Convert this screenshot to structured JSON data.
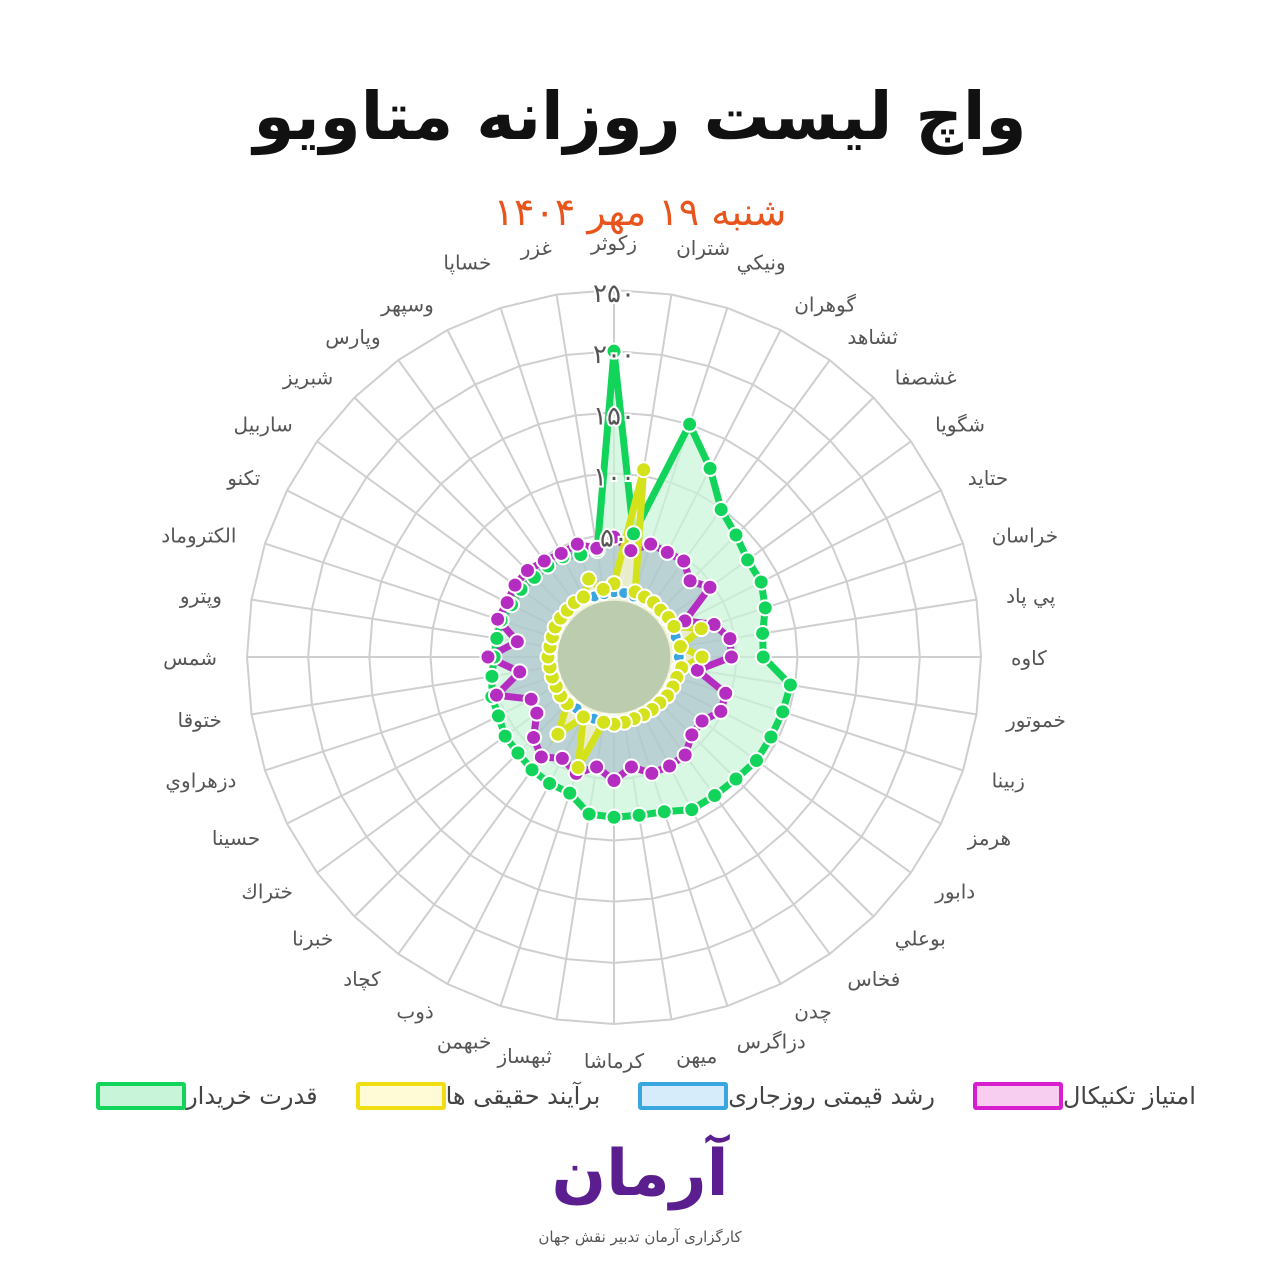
{
  "header": {
    "title": "واچ لیست روزانه متاویو",
    "subtitle": "شنبه ۱۹ مهر ۱۴۰۴"
  },
  "chart_data": {
    "type": "radar",
    "categories": [
      "زکوثر",
      "شتران",
      "ونيكي",
      "گوهران",
      "ثشاهد",
      "غشصفا",
      "شگویا",
      "حتاید",
      "خراسان",
      "پي پاد",
      "کاوه",
      "خموتور",
      "زبینا",
      "هرمز",
      "دابور",
      "بوعلي",
      "فخاس",
      "چدن",
      "دزاگرس",
      "میهن",
      "کرماشا",
      "ثبهساز",
      "خبهمن",
      "ذوب",
      "کچاد",
      "خبرنا",
      "ختراك",
      "حسینا",
      "دزهراوي",
      "ختوقا",
      "شمس",
      "وپترو",
      "الکتروماد",
      "تکنو",
      "ساربیل",
      "شبریز",
      "وپارس",
      "وسپهر",
      "خساپا",
      "غزر"
    ],
    "rlim": [
      -50,
      250
    ],
    "ticks": [
      {
        "value": 50,
        "label": "۵۰"
      },
      {
        "value": 100,
        "label": "۱۰۰"
      },
      {
        "value": 150,
        "label": "۱۵۰"
      },
      {
        "value": 200,
        "label": "۲۰۰"
      },
      {
        "value": 250,
        "label": "۲۵۰"
      }
    ],
    "grid": true,
    "legend_position": "bottom",
    "series": [
      {
        "name": "قدرت خریدار",
        "color": "#12d45a",
        "fill": "#c8f5d9",
        "values": [
          200,
          52,
          150,
          123,
          99,
          91,
          85,
          85,
          80,
          73,
          72,
          96,
          95,
          94,
          94,
          91,
          90,
          90,
          83,
          81,
          81,
          80,
          67,
          66,
          64,
          61,
          60,
          56,
          55,
          51,
          48,
          47,
          47,
          44,
          44,
          42,
          42,
          42,
          38,
          38
        ]
      },
      {
        "name": "برآیند حقیقی ها",
        "color": "#d4e21c",
        "fill": "#fff9cc",
        "values": [
          10,
          105,
          6,
          5,
          5,
          4,
          5,
          5,
          25,
          5,
          22,
          6,
          4,
          4,
          4,
          3,
          3,
          3,
          3,
          4,
          5,
          4,
          45,
          5,
          28,
          4,
          4,
          3,
          3,
          3,
          4,
          3,
          3,
          4,
          4,
          4,
          5,
          5,
          17,
          6
        ]
      },
      {
        "name": "رشد قیمتی روزجاری",
        "color": "#3aa6e0",
        "fill": "#d6ecfa",
        "values": [
          3,
          3,
          2,
          2,
          3,
          3,
          2,
          3,
          3,
          4,
          3,
          3,
          3,
          2,
          2,
          2,
          3,
          3,
          2,
          3,
          2,
          2,
          3,
          3,
          2,
          2,
          3,
          3,
          2,
          2,
          2,
          3,
          3,
          2,
          2,
          3,
          3,
          3,
          2,
          2
        ]
      },
      {
        "name": "امتیاز تکنیکال",
        "color": "#b52cc0",
        "fill": "#f7cdf0",
        "values": [
          48,
          38,
          47,
          46,
          47,
          38,
          47,
          15,
          36,
          46,
          46,
          19,
          46,
          48,
          39,
          40,
          49,
          50,
          50,
          41,
          51,
          41,
          50,
          43,
          51,
          43,
          28,
          26,
          51,
          28,
          53,
          30,
          50,
          48,
          50,
          50,
          47,
          45,
          47,
          40
        ]
      }
    ]
  },
  "logo": {
    "text": "آرمان",
    "caption": "کارگزاری آرمان تدبیر نقش جهان",
    "color": "#5b1e8e"
  }
}
